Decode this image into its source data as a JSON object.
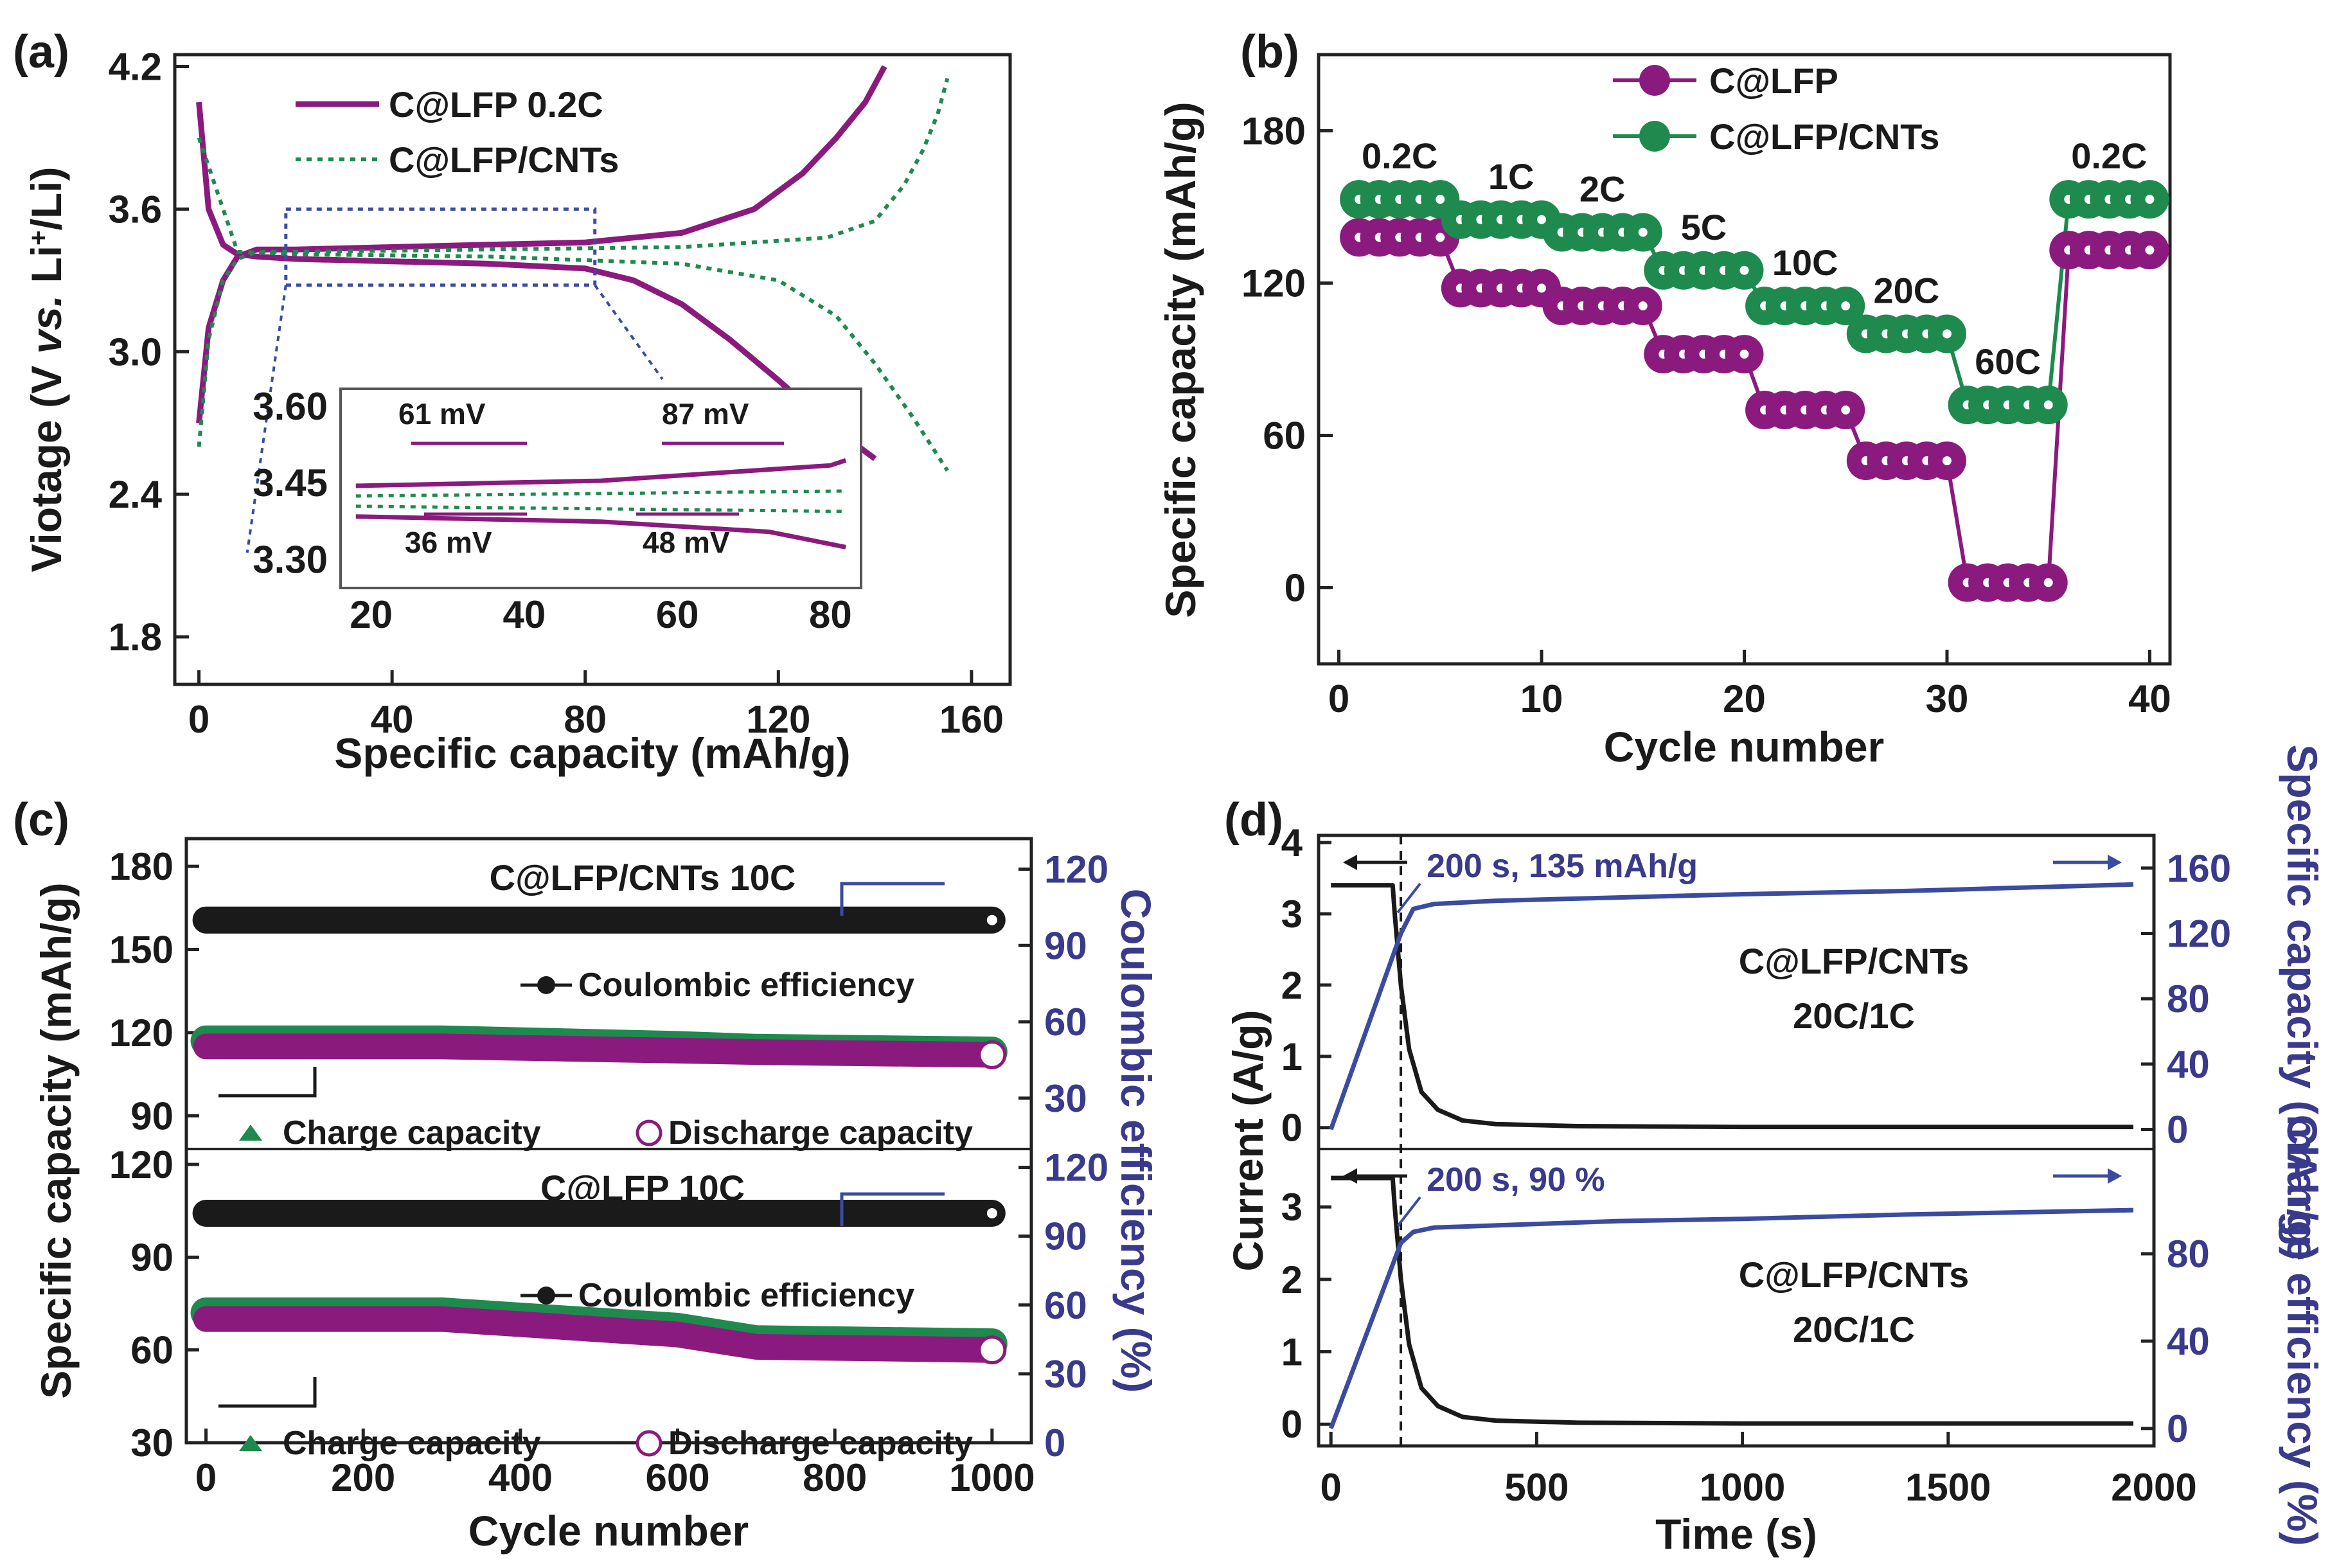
{
  "colors": {
    "clfp": "#8b1a7e",
    "cnts": "#1e8a4e",
    "black": "#1a1a1a",
    "blue": "#3a4ba0",
    "axis": "#222222"
  },
  "chart_data": [
    {
      "panel": "(a)",
      "type": "line",
      "xlabel": "Specific capacity (mAh/g)",
      "ylabel": "Viotage (V vs. Li+/Li)",
      "xlim": [
        -5,
        168
      ],
      "ylim": [
        1.6,
        4.25
      ],
      "xticks": [
        "0",
        "40",
        "80",
        "120",
        "160"
      ],
      "yticks": [
        "1.8",
        "2.4",
        "3.0",
        "3.6",
        "4.2"
      ],
      "legend": [
        "C@LFP   0.2C",
        "C@LFP/CNTs"
      ],
      "series": [
        {
          "name": "C@LFP charge",
          "x": [
            0,
            2,
            5,
            8,
            12,
            20,
            40,
            60,
            80,
            100,
            115,
            125,
            132,
            138,
            142
          ],
          "y": [
            2.7,
            3.1,
            3.3,
            3.4,
            3.43,
            3.43,
            3.44,
            3.45,
            3.46,
            3.5,
            3.6,
            3.75,
            3.9,
            4.05,
            4.2
          ]
        },
        {
          "name": "C@LFP discharge",
          "x": [
            0,
            2,
            5,
            8,
            12,
            20,
            40,
            60,
            80,
            90,
            100,
            110,
            120,
            130,
            140
          ],
          "y": [
            4.05,
            3.6,
            3.45,
            3.41,
            3.4,
            3.39,
            3.38,
            3.37,
            3.35,
            3.3,
            3.2,
            3.05,
            2.88,
            2.7,
            2.55
          ]
        },
        {
          "name": "C@LFP/CNTs charge",
          "x": [
            0,
            2,
            5,
            8,
            12,
            20,
            60,
            100,
            130,
            140,
            146,
            150,
            153,
            155
          ],
          "y": [
            2.6,
            3.05,
            3.3,
            3.39,
            3.42,
            3.42,
            3.43,
            3.44,
            3.48,
            3.55,
            3.7,
            3.85,
            4.0,
            4.15
          ]
        },
        {
          "name": "C@LFP/CNTs discharge",
          "x": [
            0,
            8,
            20,
            60,
            100,
            120,
            132,
            140,
            148,
            155
          ],
          "y": [
            3.9,
            3.42,
            3.41,
            3.4,
            3.37,
            3.3,
            3.15,
            2.95,
            2.72,
            2.5
          ]
        }
      ],
      "inset": {
        "xticks": [
          "20",
          "40",
          "60",
          "80"
        ],
        "yticks": [
          "3.60",
          "3.45",
          "3.30"
        ],
        "annotations": [
          "61 mV",
          "87 mV",
          "36 mV",
          "48 mV"
        ]
      }
    },
    {
      "panel": "(b)",
      "type": "scatter",
      "xlabel": "Cycle number",
      "ylabel": "Specific capacity (mAh/g)",
      "xlim": [
        -1,
        41
      ],
      "ylim": [
        -30,
        210
      ],
      "xticks": [
        "0",
        "10",
        "20",
        "30",
        "40"
      ],
      "yticks": [
        "0",
        "60",
        "120",
        "180"
      ],
      "legend": [
        "C@LFP",
        "C@LFP/CNTs"
      ],
      "rates": [
        "0.2C",
        "1C",
        "2C",
        "5C",
        "10C",
        "20C",
        "60C",
        "0.2C"
      ],
      "segments": [
        {
          "start": 1,
          "end": 5,
          "clfp": 138,
          "cnts": 153
        },
        {
          "start": 6,
          "end": 10,
          "clfp": 118,
          "cnts": 145
        },
        {
          "start": 11,
          "end": 15,
          "clfp": 111,
          "cnts": 140
        },
        {
          "start": 16,
          "end": 20,
          "clfp": 92,
          "cnts": 125
        },
        {
          "start": 21,
          "end": 25,
          "clfp": 70,
          "cnts": 111
        },
        {
          "start": 26,
          "end": 30,
          "clfp": 50,
          "cnts": 100
        },
        {
          "start": 31,
          "end": 35,
          "clfp": 2,
          "cnts": 72
        },
        {
          "start": 36,
          "end": 40,
          "clfp": 133,
          "cnts": 153
        }
      ]
    },
    {
      "panel": "(c)",
      "type": "scatter",
      "xlabel": "Cycle number",
      "ylabel": "Specific capacity (mAh/g)",
      "y2label": "Coulombic efficiency (%)",
      "xticks": [
        "0",
        "200",
        "400",
        "600",
        "800",
        "1000"
      ],
      "top": {
        "title": "C@LFP/CNTs 10C",
        "ylim": [
          78,
          190
        ],
        "yticks": [
          "90",
          "120",
          "150",
          "180"
        ],
        "y2ticks": [
          "30",
          "60",
          "90",
          "120"
        ],
        "efficiency": 100,
        "charge_start": 117,
        "charge_end": 113,
        "discharge_start": 115,
        "discharge_end": 112,
        "legend": [
          "Coulombic efficiency",
          "Charge capacity",
          "Discharge capacity"
        ]
      },
      "bottom": {
        "title": "C@LFP 10C",
        "ylim": [
          30,
          125
        ],
        "yticks": [
          "30",
          "60",
          "90",
          "120"
        ],
        "y2ticks": [
          "0",
          "30",
          "60",
          "90",
          "120"
        ],
        "efficiency": 100,
        "charge_start": 72,
        "charge_end": 62,
        "discharge_start": 70,
        "discharge_end": 60,
        "legend": [
          "Coulombic efficiency",
          "Charge capacity",
          "Discharge capacity"
        ]
      }
    },
    {
      "panel": "(d)",
      "type": "line",
      "xlabel": "Time (s)",
      "ylabel": "Current (A/g)",
      "xlim": [
        -30,
        2000
      ],
      "xticks": [
        "0",
        "500",
        "1000",
        "1500",
        "2000"
      ],
      "top": {
        "yticks": [
          "0",
          "1",
          "2",
          "3",
          "4"
        ],
        "y2label": "Specific capacity (mAh/g)",
        "y2ticks": [
          "0",
          "40",
          "80",
          "120",
          "160"
        ],
        "annotation": "200 s, 135 mAh/g",
        "label": [
          "C@LFP/CNTs",
          "20C/1C"
        ],
        "current": {
          "x": [
            0,
            150,
            155,
            170,
            190,
            220,
            260,
            320,
            400,
            600,
            1000,
            1950
          ],
          "y": [
            3.4,
            3.4,
            3.0,
            2.0,
            1.1,
            0.5,
            0.25,
            0.1,
            0.05,
            0.02,
            0.01,
            0.01
          ]
        },
        "capacity": {
          "x": [
            0,
            170,
            200,
            250,
            400,
            700,
            1000,
            1400,
            1950
          ],
          "y": [
            0,
            120,
            135,
            138,
            140,
            142,
            144,
            146,
            150
          ]
        }
      },
      "bottom": {
        "yticks": [
          "0",
          "1",
          "2",
          "3"
        ],
        "y2label": "Charge efficiency (%)",
        "y2ticks": [
          "0",
          "40",
          "80"
        ],
        "annotation": "200 s, 90 %",
        "label": [
          "C@LFP/CNTs",
          "20C/1C"
        ],
        "current": {
          "x": [
            0,
            150,
            155,
            170,
            190,
            220,
            260,
            320,
            400,
            600,
            1000,
            1950
          ],
          "y": [
            3.4,
            3.4,
            3.0,
            2.0,
            1.1,
            0.5,
            0.25,
            0.1,
            0.05,
            0.02,
            0.01,
            0.01
          ]
        },
        "efficiency": {
          "x": [
            0,
            170,
            200,
            250,
            400,
            700,
            1000,
            1400,
            1950
          ],
          "y": [
            0,
            85,
            90,
            92,
            93,
            95,
            96,
            98,
            100
          ]
        }
      }
    }
  ],
  "text": {
    "a_label": "(a)",
    "b_label": "(b)",
    "c_label": "(c)",
    "d_label": "(d)",
    "a_xlabel": "Specific capacity (mAh/g)",
    "b_xlabel": "Cycle number",
    "b_ylabel": "Specific capacity (mAh/g)",
    "c_xlabel": "Cycle number",
    "c_ylabel": "Specific capacity (mAh/g)",
    "c_y2label": "Coulombic efficiency (%)",
    "d_xlabel": "Time (s)",
    "d_ylabel": "Current (A/g)",
    "d_y2top": "Specific capacity (mAh/g)",
    "d_y2bottom": "Charge efficiency (%)"
  }
}
